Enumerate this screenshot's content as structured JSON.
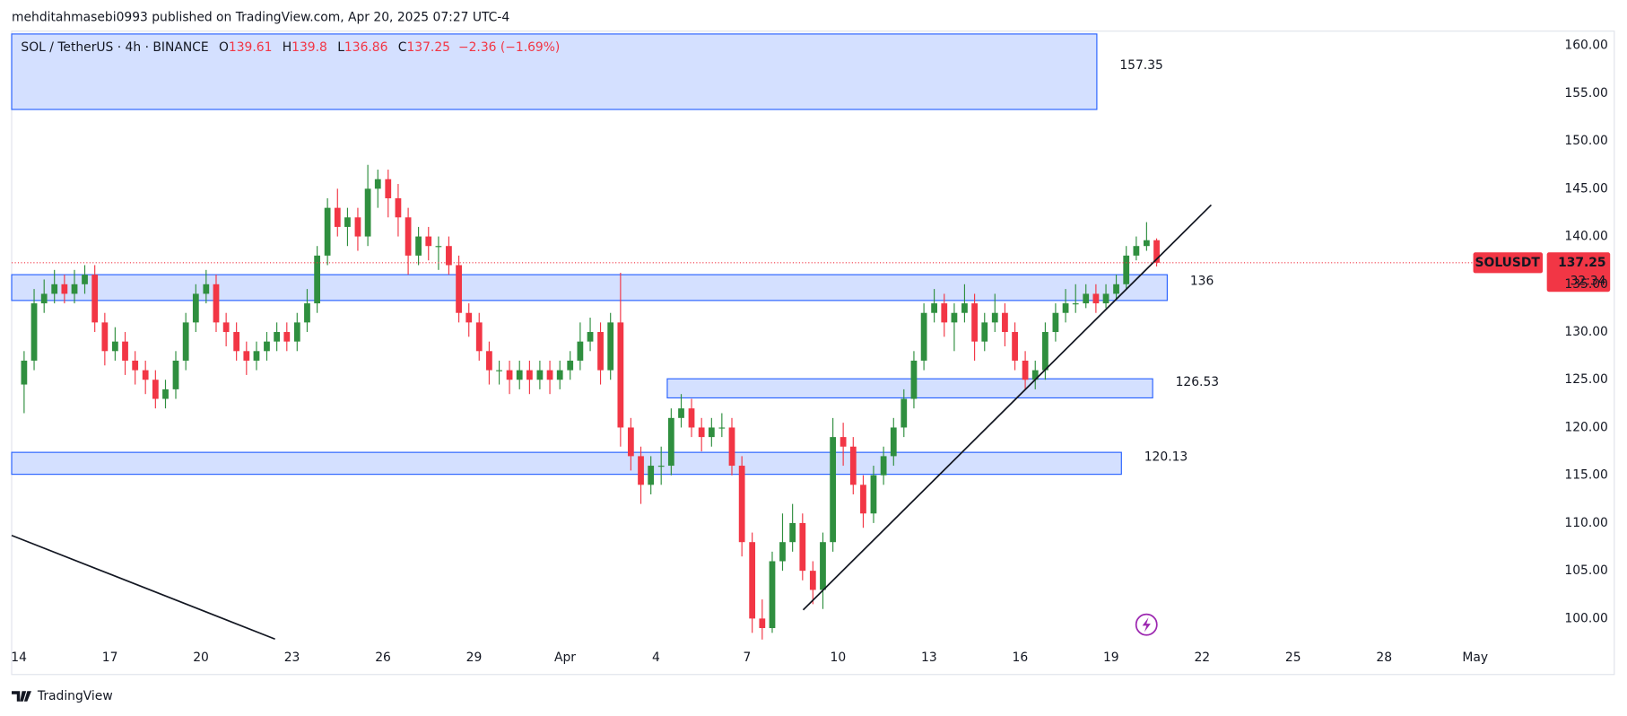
{
  "header": {
    "text": "mehditahmasebi0993 published on TradingView.com, Apr 20, 2025 07:27 UTC-4"
  },
  "footer": {
    "brand": "TradingView"
  },
  "chart_data": {
    "type": "candlestick",
    "ohlc_labels": [
      "O",
      "H",
      "L",
      "C"
    ],
    "change": "−2.36 (−1.69%)",
    "symbol_tag": "SOLUSDT",
    "countdown": "32:34",
    "up_color": "#2f8f3f",
    "down_color": "#f23645",
    "zone_color": "#2962ff",
    "grid": false,
    "xlim": [
      -0.24,
      50.33
    ],
    "ylim": [
      97.4,
      161.5
    ],
    "xticks": [
      {
        "value": 0,
        "label": "14"
      },
      {
        "value": 3,
        "label": "17"
      },
      {
        "value": 6,
        "label": "20"
      },
      {
        "value": 9,
        "label": "23"
      },
      {
        "value": 12,
        "label": "26"
      },
      {
        "value": 15,
        "label": "29"
      },
      {
        "value": 18,
        "label": "Apr"
      },
      {
        "value": 21,
        "label": "4"
      },
      {
        "value": 24,
        "label": "7"
      },
      {
        "value": 27,
        "label": "10"
      },
      {
        "value": 30,
        "label": "13"
      },
      {
        "value": 33,
        "label": "16"
      },
      {
        "value": 36,
        "label": "19"
      },
      {
        "value": 39,
        "label": "22"
      },
      {
        "value": 42,
        "label": "25"
      },
      {
        "value": 45,
        "label": "28"
      },
      {
        "value": 48,
        "label": "May"
      }
    ],
    "yticks": [
      {
        "value": 100,
        "label": "100.00"
      },
      {
        "value": 105,
        "label": "105.00"
      },
      {
        "value": 110,
        "label": "110.00"
      },
      {
        "value": 115,
        "label": "115.00"
      },
      {
        "value": 120,
        "label": "120.00"
      },
      {
        "value": 125,
        "label": "125.00"
      },
      {
        "value": 130,
        "label": "130.00"
      },
      {
        "value": 135,
        "label": "135.00"
      },
      {
        "value": 140,
        "label": "140.00"
      },
      {
        "value": 145,
        "label": "145.00"
      },
      {
        "value": 150,
        "label": "150.00"
      },
      {
        "value": 155,
        "label": "155.00"
      },
      {
        "value": 160,
        "label": "160.00"
      }
    ],
    "series": [
      {
        "name": "SOL / TetherUS · 4h · BINANCE",
        "x": [
          0.17,
          0.5,
          0.83,
          1.17,
          1.5,
          1.83,
          2.17,
          2.5,
          2.83,
          3.17,
          3.5,
          3.83,
          4.17,
          4.5,
          4.83,
          5.17,
          5.5,
          5.83,
          6.17,
          6.5,
          6.83,
          7.17,
          7.5,
          7.83,
          8.17,
          8.5,
          8.83,
          9.17,
          9.5,
          9.83,
          10.17,
          10.5,
          10.83,
          11.17,
          11.5,
          11.83,
          12.17,
          12.5,
          12.83,
          13.17,
          13.5,
          13.83,
          14.17,
          14.5,
          14.83,
          15.17,
          15.5,
          15.83,
          16.17,
          16.5,
          16.83,
          17.17,
          17.5,
          17.83,
          18.17,
          18.5,
          18.83,
          19.17,
          19.5,
          19.83,
          20.17,
          20.5,
          20.83,
          21.17,
          21.5,
          21.83,
          22.17,
          22.5,
          22.83,
          23.17,
          23.5,
          23.83,
          24.17,
          24.5,
          24.83,
          25.17,
          25.5,
          25.83,
          26.17,
          26.5,
          26.83,
          27.17,
          27.5,
          27.83,
          28.17,
          28.5,
          28.83,
          29.17,
          29.5,
          29.83,
          30.17,
          30.5,
          30.83,
          31.17,
          31.5,
          31.83,
          32.17,
          32.5,
          32.83,
          33.17,
          33.5,
          33.83,
          34.17,
          34.5,
          34.83,
          35.17,
          35.5,
          35.83,
          36.17,
          36.5,
          36.83,
          37.17,
          37.5
        ],
        "open": [
          124.5,
          127,
          133,
          134,
          135,
          134,
          135,
          136,
          131,
          128,
          129,
          127,
          126,
          125,
          123,
          124,
          127,
          131,
          134,
          135,
          131,
          130,
          128,
          127,
          128,
          129,
          130,
          129,
          131,
          133,
          138,
          143,
          141,
          142,
          140,
          145,
          146,
          144,
          142,
          138,
          140,
          139,
          139,
          137,
          132,
          131,
          128,
          126,
          126,
          125,
          126,
          125,
          126,
          125,
          126,
          127,
          129,
          130,
          126,
          131,
          120,
          117,
          114,
          116,
          116,
          121,
          122,
          120,
          119,
          120,
          120,
          116,
          108,
          100,
          99,
          106,
          108,
          110,
          105,
          103,
          108,
          119,
          118,
          114,
          111,
          115,
          117,
          120,
          123,
          127,
          132,
          133,
          131,
          132,
          133,
          129,
          131,
          132,
          130,
          127,
          125,
          126,
          130,
          132,
          133,
          133,
          134,
          133,
          134,
          135,
          138,
          139,
          139.61
        ],
        "high": [
          128,
          134.5,
          135.5,
          136.5,
          136,
          136.5,
          137,
          137,
          132,
          130.5,
          130,
          128,
          127,
          126,
          125,
          128,
          132,
          135,
          136.5,
          136,
          132,
          131,
          129,
          129,
          130,
          131,
          131,
          132,
          134.5,
          139,
          144,
          145,
          143,
          143,
          147.5,
          147,
          147,
          145.5,
          143,
          141,
          141,
          140,
          140,
          138,
          133,
          132,
          129,
          127,
          127,
          127,
          127,
          127,
          127,
          127,
          128,
          131,
          131.5,
          131,
          132,
          136.2,
          121,
          118,
          117,
          118,
          122,
          123.5,
          123,
          121,
          121,
          121.5,
          121,
          117,
          109,
          102,
          107,
          111,
          112,
          111,
          106,
          109,
          121,
          120.5,
          119,
          115,
          116,
          118,
          121,
          124,
          128,
          133,
          134.5,
          134,
          133,
          135,
          134,
          132,
          134,
          133,
          131,
          128,
          127,
          131,
          133,
          134.5,
          135,
          135,
          135,
          135,
          136,
          139,
          140,
          141.5,
          139.8
        ],
        "low": [
          121.5,
          126,
          132,
          133,
          133,
          133,
          134,
          130,
          126.5,
          127,
          125.5,
          124.5,
          123.5,
          122,
          122,
          123,
          126,
          130,
          133,
          130,
          128.5,
          127,
          125.5,
          126,
          127,
          128,
          128,
          128,
          130,
          132,
          137,
          140,
          139,
          138.5,
          139,
          143,
          142,
          140,
          136,
          137,
          137.5,
          136.5,
          136,
          131,
          129.5,
          127,
          124.5,
          124.5,
          123.5,
          124,
          123.5,
          124,
          123.5,
          124,
          125,
          126,
          128,
          124.5,
          125,
          118,
          115.5,
          112,
          113,
          114,
          115,
          120,
          119,
          117.5,
          118,
          119,
          115,
          106.5,
          98.5,
          97.8,
          98.5,
          105,
          107,
          104,
          101.5,
          101,
          107,
          116,
          113,
          109.5,
          110,
          114,
          116,
          119,
          122,
          126,
          131,
          129.5,
          128,
          131,
          127,
          128,
          130,
          128.5,
          126,
          124,
          124,
          125,
          129,
          131,
          132,
          132.5,
          132,
          132.5,
          133.5,
          134.5,
          137.5,
          138.5,
          136.86
        ],
        "close": [
          127,
          133,
          134,
          135,
          134,
          135,
          136,
          131,
          128,
          129,
          127,
          126,
          125,
          123,
          124,
          127,
          131,
          134,
          135,
          131,
          130,
          128,
          127,
          128,
          129,
          130,
          129,
          131,
          133,
          138,
          143,
          141,
          142,
          140,
          145,
          146,
          144,
          142,
          138,
          140,
          139,
          139,
          137,
          132,
          131,
          128,
          126,
          126,
          125,
          126,
          125,
          126,
          125,
          126,
          127,
          129,
          130,
          126,
          131,
          120,
          117,
          114,
          116,
          116,
          121,
          122,
          120,
          119,
          120,
          120,
          116,
          108,
          100,
          99,
          106,
          108,
          110,
          105,
          103,
          108,
          119,
          118,
          114,
          111,
          115,
          117,
          120,
          123,
          127,
          132,
          133,
          131,
          132,
          133,
          129,
          131,
          132,
          130,
          127,
          125,
          126,
          130,
          132,
          133,
          133,
          134,
          133,
          134,
          135,
          138,
          139,
          139.61,
          137.25
        ]
      }
    ],
    "zones": [
      {
        "label": "157.35",
        "x": [
          -0.24,
          35.53
        ],
        "y": [
          161.2,
          153.3
        ]
      },
      {
        "label": "136",
        "x": [
          -0.24,
          37.85
        ],
        "y": [
          136.0,
          133.3
        ]
      },
      {
        "label": "126.53",
        "x": [
          21.37,
          37.37
        ],
        "y": [
          125.1,
          123.1
        ]
      },
      {
        "label": "120.13",
        "x": [
          -0.24,
          36.34
        ],
        "y": [
          117.4,
          115.1
        ]
      }
    ],
    "lines": [
      {
        "x": [
          25.85,
          39.3
        ],
        "y": [
          100.9,
          143.3
        ]
      },
      {
        "x": [
          -0.24,
          8.44
        ],
        "y": [
          108.7,
          97.85
        ]
      }
    ]
  }
}
